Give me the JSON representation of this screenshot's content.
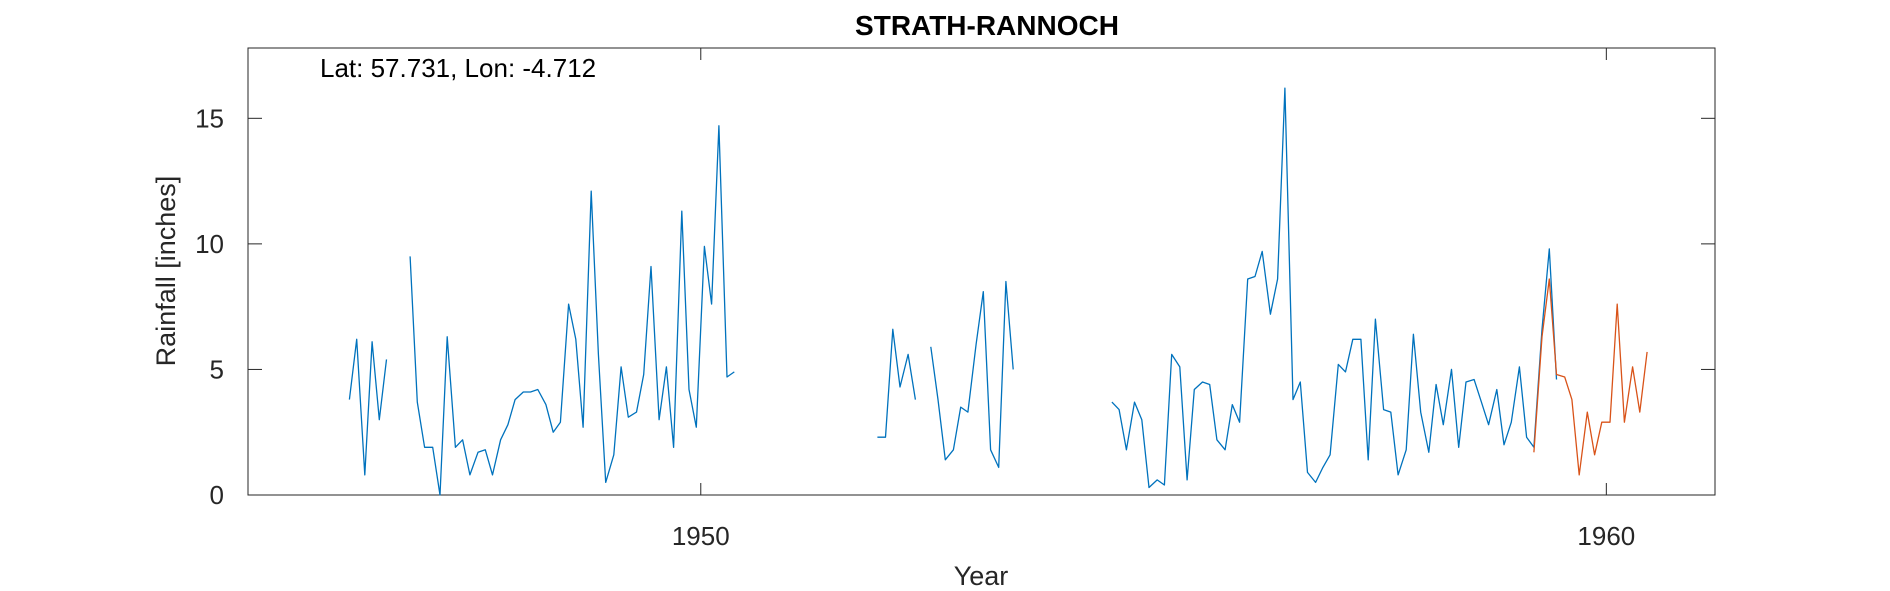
{
  "chart_data": {
    "type": "line",
    "title": "STRATH-RANNOCH",
    "annotation": "Lat: 57.731, Lon: -4.712",
    "xlabel": "Year",
    "ylabel": "Rainfall [inches]",
    "xlim": [
      1945,
      1961.2
    ],
    "ylim": [
      0,
      17.8
    ],
    "xticks": [
      1950,
      1960
    ],
    "xtick_labels": [
      "1950",
      "1960"
    ],
    "yticks": [
      0,
      5,
      10,
      15
    ],
    "ytick_labels": [
      "0",
      "5",
      "10",
      "15"
    ],
    "grid": false,
    "colors": {
      "observed": "#0072BD",
      "recent": "#D95319"
    },
    "series": [
      {
        "color": "#0072BD",
        "segments": [
          [
            [
              1946.12,
              3.8
            ],
            [
              1946.2,
              6.2
            ],
            [
              1946.29,
              0.8
            ],
            [
              1946.37,
              6.1
            ],
            [
              1946.45,
              3.0
            ],
            [
              1946.53,
              5.4
            ]
          ],
          [
            [
              1946.79,
              9.5
            ],
            [
              1946.87,
              3.7
            ],
            [
              1946.95,
              1.9
            ],
            [
              1947.04,
              1.9
            ],
            [
              1947.12,
              0.0
            ],
            [
              1947.2,
              6.3
            ],
            [
              1947.29,
              1.9
            ],
            [
              1947.37,
              2.2
            ],
            [
              1947.45,
              0.8
            ],
            [
              1947.54,
              1.7
            ],
            [
              1947.62,
              1.8
            ],
            [
              1947.7,
              0.8
            ],
            [
              1947.79,
              2.2
            ],
            [
              1947.87,
              2.8
            ],
            [
              1947.95,
              3.8
            ],
            [
              1948.04,
              4.1
            ],
            [
              1948.12,
              4.1
            ],
            [
              1948.2,
              4.2
            ],
            [
              1948.29,
              3.6
            ],
            [
              1948.37,
              2.5
            ],
            [
              1948.45,
              2.9
            ],
            [
              1948.54,
              7.6
            ],
            [
              1948.62,
              6.2
            ],
            [
              1948.7,
              2.7
            ],
            [
              1948.79,
              12.1
            ],
            [
              1948.87,
              5.6
            ],
            [
              1948.95,
              0.5
            ],
            [
              1949.04,
              1.6
            ],
            [
              1949.12,
              5.1
            ],
            [
              1949.2,
              3.1
            ],
            [
              1949.29,
              3.3
            ],
            [
              1949.37,
              4.8
            ],
            [
              1949.45,
              9.1
            ],
            [
              1949.54,
              3.0
            ],
            [
              1949.62,
              5.1
            ],
            [
              1949.7,
              1.9
            ],
            [
              1949.79,
              11.3
            ],
            [
              1949.87,
              4.2
            ],
            [
              1949.95,
              2.7
            ],
            [
              1950.04,
              9.9
            ],
            [
              1950.12,
              7.6
            ],
            [
              1950.2,
              14.7
            ],
            [
              1950.29,
              4.7
            ],
            [
              1950.37,
              4.9
            ]
          ],
          [
            [
              1951.95,
              2.3
            ],
            [
              1952.04,
              2.3
            ],
            [
              1952.12,
              6.6
            ],
            [
              1952.2,
              4.3
            ],
            [
              1952.29,
              5.6
            ],
            [
              1952.37,
              3.8
            ]
          ],
          [
            [
              1952.54,
              5.9
            ],
            [
              1952.62,
              3.8
            ],
            [
              1952.7,
              1.4
            ],
            [
              1952.79,
              1.8
            ],
            [
              1952.87,
              3.5
            ],
            [
              1952.95,
              3.3
            ],
            [
              1953.04,
              6.0
            ],
            [
              1953.12,
              8.1
            ],
            [
              1953.2,
              1.8
            ],
            [
              1953.29,
              1.1
            ],
            [
              1953.37,
              8.5
            ],
            [
              1953.45,
              5.0
            ]
          ],
          [
            [
              1954.54,
              3.7
            ],
            [
              1954.62,
              3.4
            ],
            [
              1954.7,
              1.8
            ],
            [
              1954.79,
              3.7
            ],
            [
              1954.87,
              3.0
            ],
            [
              1954.95,
              0.3
            ],
            [
              1955.04,
              0.6
            ],
            [
              1955.12,
              0.4
            ],
            [
              1955.2,
              5.6
            ],
            [
              1955.29,
              5.1
            ],
            [
              1955.37,
              0.6
            ],
            [
              1955.45,
              4.2
            ],
            [
              1955.54,
              4.5
            ],
            [
              1955.62,
              4.4
            ],
            [
              1955.7,
              2.2
            ],
            [
              1955.79,
              1.8
            ],
            [
              1955.87,
              3.6
            ],
            [
              1955.95,
              2.9
            ],
            [
              1956.04,
              8.6
            ],
            [
              1956.12,
              8.7
            ],
            [
              1956.2,
              9.7
            ],
            [
              1956.29,
              7.2
            ],
            [
              1956.37,
              8.6
            ],
            [
              1956.45,
              16.2
            ],
            [
              1956.54,
              3.8
            ],
            [
              1956.62,
              4.5
            ],
            [
              1956.7,
              0.9
            ],
            [
              1956.79,
              0.5
            ],
            [
              1956.87,
              1.1
            ],
            [
              1956.95,
              1.6
            ],
            [
              1957.04,
              5.2
            ],
            [
              1957.12,
              4.9
            ],
            [
              1957.2,
              6.2
            ],
            [
              1957.29,
              6.2
            ],
            [
              1957.37,
              1.4
            ],
            [
              1957.45,
              7.0
            ],
            [
              1957.54,
              3.4
            ],
            [
              1957.62,
              3.3
            ],
            [
              1957.7,
              0.8
            ],
            [
              1957.79,
              1.8
            ],
            [
              1957.87,
              6.4
            ],
            [
              1957.95,
              3.3
            ],
            [
              1958.04,
              1.7
            ],
            [
              1958.12,
              4.4
            ],
            [
              1958.2,
              2.8
            ],
            [
              1958.29,
              5.0
            ],
            [
              1958.37,
              1.9
            ],
            [
              1958.45,
              4.5
            ],
            [
              1958.54,
              4.6
            ],
            [
              1958.62,
              3.7
            ],
            [
              1958.7,
              2.8
            ],
            [
              1958.79,
              4.2
            ],
            [
              1958.87,
              2.0
            ],
            [
              1958.95,
              2.9
            ],
            [
              1959.04,
              5.1
            ],
            [
              1959.12,
              2.3
            ],
            [
              1959.2,
              1.9
            ],
            [
              1959.29,
              6.6
            ],
            [
              1959.37,
              9.8
            ],
            [
              1959.45,
              4.6
            ]
          ]
        ]
      },
      {
        "color": "#D95319",
        "segments": [
          [
            [
              1959.2,
              1.7
            ],
            [
              1959.29,
              6.3
            ],
            [
              1959.37,
              8.6
            ],
            [
              1959.45,
              4.8
            ],
            [
              1959.54,
              4.7
            ],
            [
              1959.62,
              3.8
            ],
            [
              1959.7,
              0.8
            ],
            [
              1959.79,
              3.3
            ],
            [
              1959.87,
              1.6
            ],
            [
              1959.95,
              2.9
            ],
            [
              1960.04,
              2.9
            ],
            [
              1960.12,
              7.6
            ],
            [
              1960.2,
              2.9
            ],
            [
              1960.29,
              5.1
            ],
            [
              1960.37,
              3.3
            ],
            [
              1960.45,
              5.7
            ]
          ]
        ]
      }
    ]
  }
}
